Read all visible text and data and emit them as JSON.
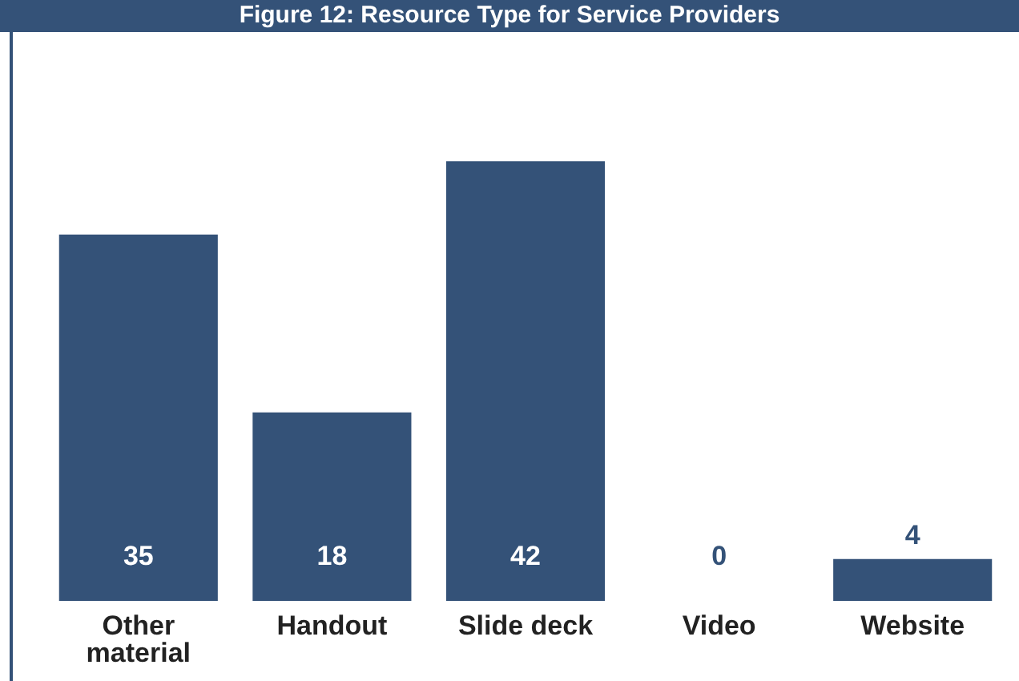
{
  "chart_data": {
    "type": "bar",
    "title": "Figure 12: Resource Type for Service Providers",
    "categories": [
      "Other material",
      "Handout",
      "Slide deck",
      "Video",
      "Website"
    ],
    "values": [
      35,
      18,
      42,
      0,
      4
    ],
    "color": "#345278",
    "data_labels": true
  }
}
